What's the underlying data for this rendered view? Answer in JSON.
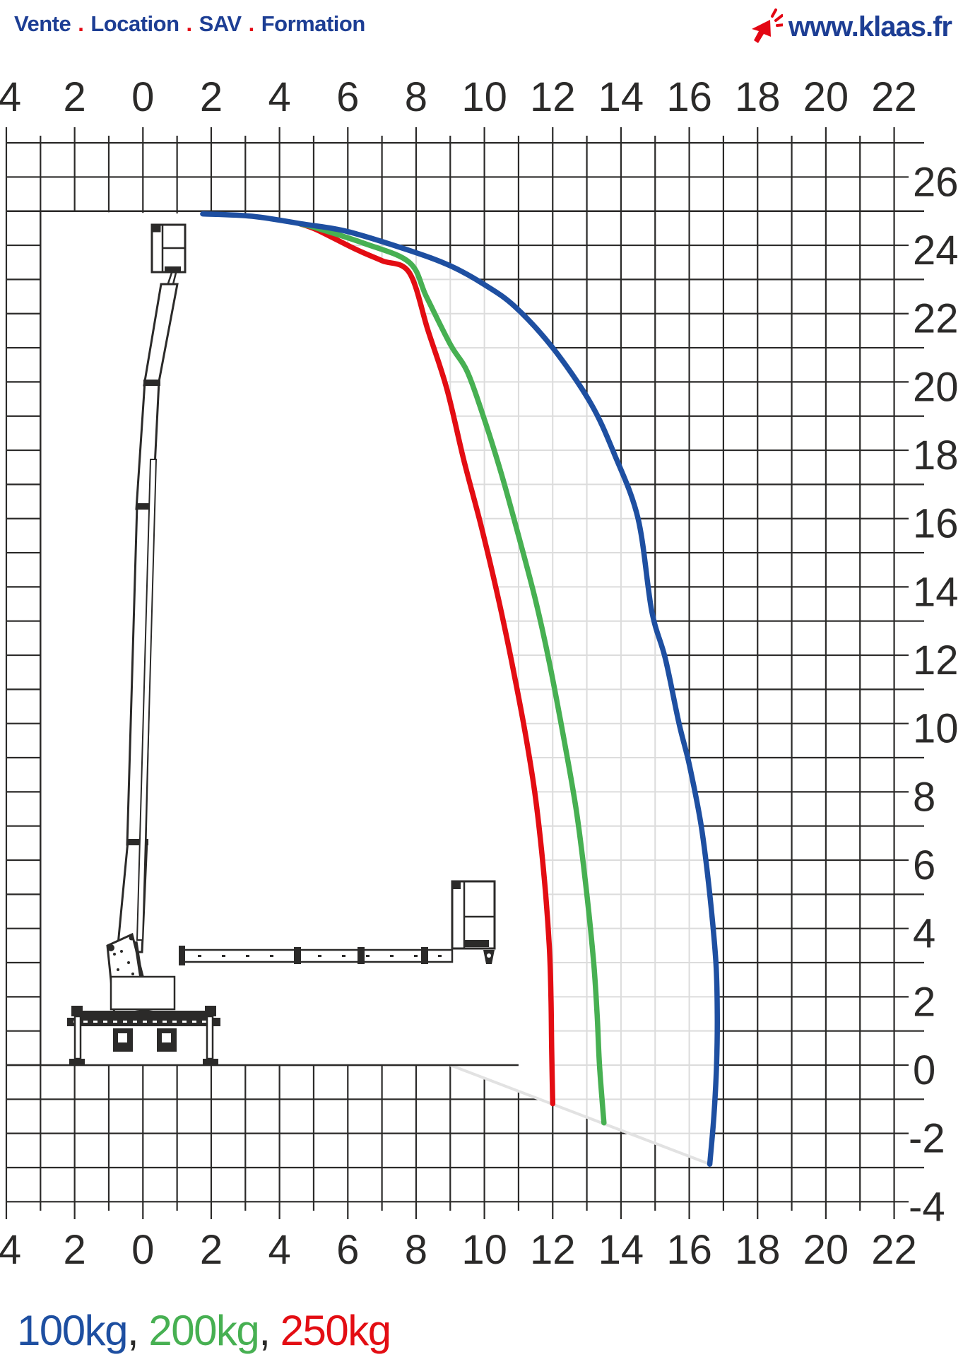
{
  "header": {
    "menu_items": [
      "Vente",
      "Location",
      "SAV",
      "Formation"
    ],
    "menu_separator": ".",
    "website": "www.klaas.fr",
    "menu_color": "#1d3e94",
    "dot_color": "#e30613",
    "website_color": "#1d3e94",
    "cursor_icon_color": "#e30613"
  },
  "legend": {
    "separator": ", ",
    "items": [
      {
        "label": "100kg",
        "color": "#1e4fa1"
      },
      {
        "label": "200kg",
        "color": "#47b052"
      },
      {
        "label": "250kg",
        "color": "#e30d13"
      }
    ]
  },
  "chart_data": {
    "type": "line",
    "title": "Crane working range / load envelope diagram",
    "units": "m",
    "grid": {
      "step": 1,
      "outside_color": "#2b2a29",
      "inside_color": "#dcdcdc",
      "diagonal_color": "#e2e2e2"
    },
    "x_axis": {
      "tick_values": [
        -4,
        -2,
        0,
        2,
        4,
        6,
        8,
        10,
        12,
        14,
        16,
        18,
        20,
        22
      ],
      "tick_labels": [
        "4",
        "2",
        "0",
        "2",
        "4",
        "6",
        "8",
        "10",
        "12",
        "14",
        "16",
        "18",
        "20",
        "22"
      ],
      "range": [
        -4.1,
        22.9
      ],
      "label_rows": [
        "top",
        "bottom"
      ]
    },
    "y_axis": {
      "side": "right",
      "tick_values": [
        26,
        24,
        22,
        20,
        18,
        16,
        14,
        12,
        10,
        8,
        6,
        4,
        2,
        0,
        -2,
        -4
      ],
      "tick_labels": [
        "26",
        "24",
        "22",
        "20",
        "18",
        "16",
        "14",
        "12",
        "10",
        "8",
        "6",
        "4",
        "2",
        "0",
        "-2",
        "-4"
      ],
      "range": [
        -4.6,
        28
      ]
    },
    "envelope": {
      "top_line_y": 25,
      "left_wall_x": -3,
      "ground_y": 0,
      "ground_dark_end_x": 11,
      "diagonal": [
        [
          9,
          0
        ],
        [
          16.6,
          -2.9
        ]
      ]
    },
    "series": [
      {
        "name": "100kg",
        "color": "#1e4fa1",
        "points": [
          [
            1.75,
            24.92
          ],
          [
            3.2,
            24.85
          ],
          [
            4.7,
            24.62
          ],
          [
            6,
            24.4
          ],
          [
            7.8,
            23.85
          ],
          [
            9,
            23.4
          ],
          [
            10,
            22.85
          ],
          [
            10.9,
            22.2
          ],
          [
            12,
            21.0
          ],
          [
            13.1,
            19.4
          ],
          [
            13.8,
            17.9
          ],
          [
            14.5,
            16.0
          ],
          [
            14.9,
            13.3
          ],
          [
            15.3,
            11.9
          ],
          [
            15.7,
            10.0
          ],
          [
            16.0,
            8.8
          ],
          [
            16.35,
            7.0
          ],
          [
            16.6,
            5.0
          ],
          [
            16.78,
            3.0
          ],
          [
            16.82,
            1.5
          ],
          [
            16.8,
            0
          ],
          [
            16.72,
            -1.5
          ],
          [
            16.6,
            -2.9
          ]
        ]
      },
      {
        "name": "200kg",
        "color": "#47b052",
        "points": [
          [
            4.6,
            24.63
          ],
          [
            5.1,
            24.5
          ],
          [
            6.5,
            24.05
          ],
          [
            7.8,
            23.5
          ],
          [
            8.3,
            22.5
          ],
          [
            9.0,
            21.1
          ],
          [
            9.5,
            20.3
          ],
          [
            10.0,
            18.9
          ],
          [
            10.5,
            17.3
          ],
          [
            11.0,
            15.5
          ],
          [
            11.5,
            13.6
          ],
          [
            11.9,
            11.8
          ],
          [
            12.3,
            9.7
          ],
          [
            12.7,
            7.4
          ],
          [
            13.0,
            5.0
          ],
          [
            13.2,
            3.0
          ],
          [
            13.3,
            1.5
          ],
          [
            13.37,
            0
          ],
          [
            13.5,
            -1.69
          ]
        ]
      },
      {
        "name": "250kg",
        "color": "#e30d13",
        "points": [
          [
            4.6,
            24.63
          ],
          [
            5.1,
            24.45
          ],
          [
            6.2,
            23.9
          ],
          [
            7.0,
            23.55
          ],
          [
            7.8,
            23.2
          ],
          [
            8.35,
            21.5
          ],
          [
            8.9,
            19.8
          ],
          [
            9.4,
            17.7
          ],
          [
            9.9,
            15.8
          ],
          [
            10.4,
            13.7
          ],
          [
            10.8,
            11.8
          ],
          [
            11.2,
            9.7
          ],
          [
            11.5,
            7.8
          ],
          [
            11.75,
            5.5
          ],
          [
            11.9,
            3.5
          ],
          [
            11.95,
            2.0
          ],
          [
            11.97,
            0.5
          ],
          [
            12.0,
            -1.13
          ]
        ]
      }
    ]
  }
}
